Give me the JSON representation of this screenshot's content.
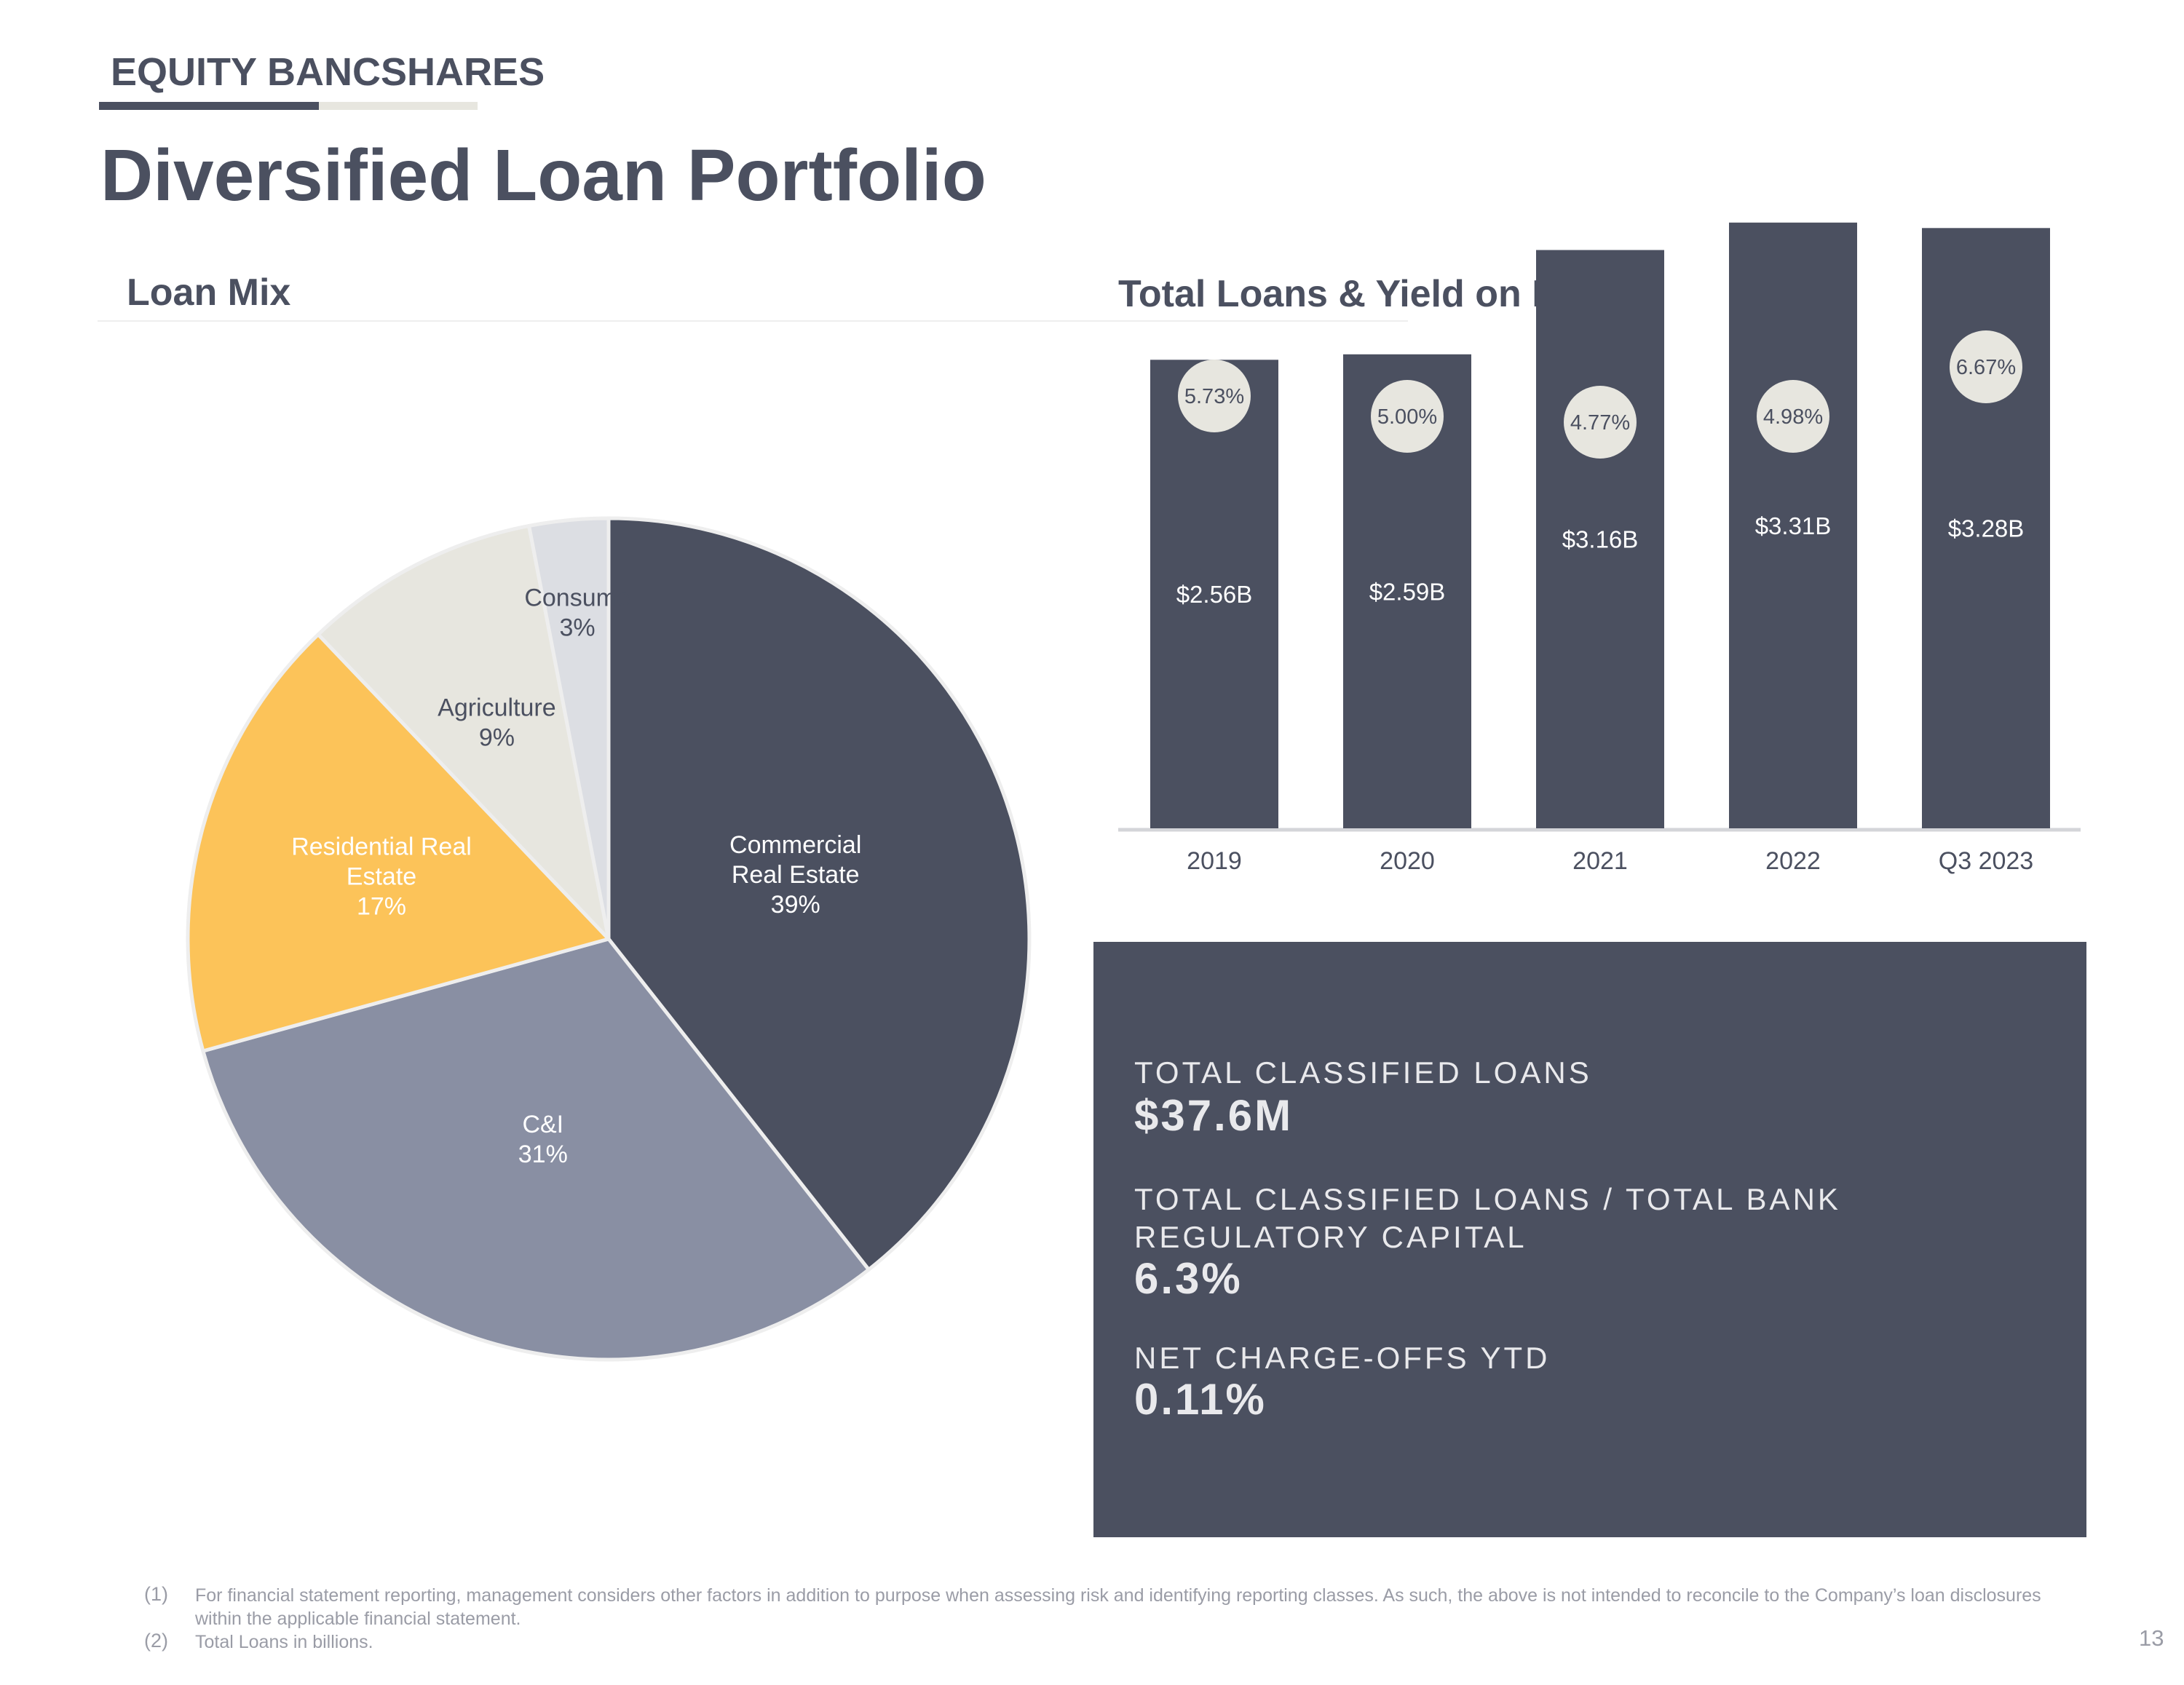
{
  "header": {
    "brand": "EQUITY BANCSHARES",
    "title": "Diversified Loan Portfolio"
  },
  "sections": {
    "loan_mix_title": "Loan Mix",
    "total_loans_title": "Total Loans & Yield on Loans"
  },
  "colors": {
    "dark": "#4b5060",
    "gray_blue": "#898fa3",
    "yellow": "#fcc359",
    "beige": "#e7e6df",
    "light_gray": "#dcdee3"
  },
  "chart_data": [
    {
      "type": "pie",
      "title": "Loan Mix",
      "slices": [
        {
          "label_lines": [
            "Commercial",
            "Real Estate"
          ],
          "value": 39,
          "value_label": "39%",
          "color": "#4b5060",
          "text_color": "#ffffff"
        },
        {
          "label_lines": [
            "C&I"
          ],
          "value": 31,
          "value_label": "31%",
          "color": "#898fa3",
          "text_color": "#ffffff"
        },
        {
          "label_lines": [
            "Residential Real",
            "Estate"
          ],
          "value": 17,
          "value_label": "17%",
          "color": "#fcc359",
          "text_color": "#ffffff"
        },
        {
          "label_lines": [
            "Agriculture"
          ],
          "value": 9,
          "value_label": "9%",
          "color": "#e7e6df",
          "text_color": "#4b5060"
        },
        {
          "label_lines": [
            "Consume"
          ],
          "value": 3,
          "value_label": "3%",
          "color": "#dcdee3",
          "text_color": "#4b5060"
        }
      ]
    },
    {
      "type": "bar",
      "title": "Total Loans & Yield on Loans",
      "categories": [
        "2019",
        "2020",
        "2021",
        "2022",
        "Q3 2023"
      ],
      "series": [
        {
          "values": [
            2.56,
            2.59,
            3.16,
            3.31,
            3.28
          ],
          "labels": [
            "$2.56B",
            "$2.59B",
            "$3.16B",
            "$3.31B",
            "$3.28B"
          ]
        },
        {
          "values": [
            5.73,
            5.0,
            4.77,
            4.98,
            6.67
          ],
          "labels": [
            "5.73%",
            "5.00%",
            "4.77%",
            "4.98%",
            "6.67%"
          ]
        }
      ],
      "ylim": [
        0,
        3.5
      ]
    }
  ],
  "stats": [
    {
      "label": "TOTAL CLASSIFIED LOANS",
      "value": "$37.6M"
    },
    {
      "label": "TOTAL CLASSIFIED LOANS / TOTAL BANK REGULATORY CAPITAL",
      "value": "6.3%"
    },
    {
      "label": "NET CHARGE-OFFS YTD",
      "value": "0.11%"
    }
  ],
  "footnotes": [
    {
      "num": "(1)",
      "text": "For financial statement reporting, management considers other factors in addition to purpose when assessing risk and identifying reporting classes.  As such, the above is not intended to reconcile to the Company’s loan disclosures within the applicable financial statement."
    },
    {
      "num": "(2)",
      "text": "Total Loans in billions."
    }
  ],
  "page_number": "13"
}
